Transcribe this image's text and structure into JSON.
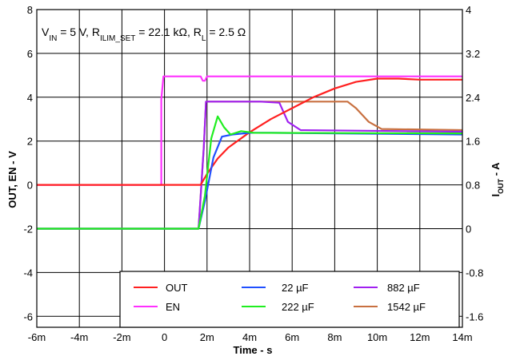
{
  "chart_data": {
    "type": "line",
    "annotation": {
      "vin_label": "V",
      "vin_sub": "IN",
      "vin_val": " = 5 V, ",
      "ilim_label": "R",
      "ilim_sub": "ILIM_SET",
      "ilim_val": " = 22.1 kΩ, ",
      "rl_label": "R",
      "rl_sub": "L",
      "rl_val": " = 2.5 Ω"
    },
    "xlabel": "Time - s",
    "ylabel_left": "OUT, EN - V",
    "ylabel_right_main": "I",
    "ylabel_right_sub": "OUT",
    "ylabel_right_unit": " - A",
    "x_ticks": [
      {
        "v": -6,
        "label": "-6m"
      },
      {
        "v": -4,
        "label": "-4m"
      },
      {
        "v": -2,
        "label": "-2m"
      },
      {
        "v": 0,
        "label": "0"
      },
      {
        "v": 2,
        "label": "2m"
      },
      {
        "v": 4,
        "label": "4m"
      },
      {
        "v": 6,
        "label": "6m"
      },
      {
        "v": 8,
        "label": "8m"
      },
      {
        "v": 10,
        "label": "10m"
      },
      {
        "v": 12,
        "label": "12m"
      },
      {
        "v": 14,
        "label": "14m"
      }
    ],
    "y_left_ticks": [
      {
        "v": 8,
        "label": "8"
      },
      {
        "v": 6,
        "label": "6"
      },
      {
        "v": 4,
        "label": "4"
      },
      {
        "v": 2,
        "label": "2"
      },
      {
        "v": 0,
        "label": "0"
      },
      {
        "v": -2,
        "label": "-2"
      },
      {
        "v": -4,
        "label": "-4"
      },
      {
        "v": -6,
        "label": "-6"
      }
    ],
    "y_right_ticks": [
      {
        "v": 4,
        "label": "4"
      },
      {
        "v": 3.2,
        "label": "3.2"
      },
      {
        "v": 2.4,
        "label": "2.4"
      },
      {
        "v": 1.6,
        "label": "1.6"
      },
      {
        "v": 0.8,
        "label": "0.8"
      },
      {
        "v": 0,
        "label": "0"
      },
      {
        "v": -0.8,
        "label": "-0.8"
      },
      {
        "v": -1.6,
        "label": "-1.6"
      }
    ],
    "xlim": [
      -6,
      14
    ],
    "ylim_left": [
      -6.5,
      8
    ],
    "ylim_right": [
      -1.8,
      4
    ],
    "grid": true,
    "legend_position": "bottom-right",
    "series": [
      {
        "name": "OUT",
        "axis": "left",
        "color": "#ff2020",
        "x": [
          -6,
          0,
          1.7,
          2.0,
          2.5,
          3,
          4,
          5,
          6,
          7,
          8,
          9,
          10,
          11,
          12,
          14
        ],
        "y": [
          0,
          0,
          0,
          0.5,
          1.2,
          1.7,
          2.4,
          3.0,
          3.5,
          4.0,
          4.4,
          4.7,
          4.85,
          4.85,
          4.8,
          4.8
        ]
      },
      {
        "name": "EN",
        "axis": "left",
        "color": "#ff30ff",
        "x": [
          -6,
          -0.15,
          -0.15,
          -0.05,
          0,
          1.7,
          1.8,
          1.9,
          2.0,
          14
        ],
        "y": [
          0,
          0,
          3.9,
          4.95,
          4.95,
          4.95,
          4.75,
          4.75,
          4.95,
          4.95
        ]
      },
      {
        "name": "22 µF",
        "axis": "right",
        "color": "#2050ff",
        "x": [
          -6,
          1.6,
          1.9,
          2.3,
          2.7,
          3.2,
          4,
          5,
          14
        ],
        "y": [
          0.0,
          0.0,
          0.5,
          1.3,
          1.68,
          1.72,
          1.75,
          1.75,
          1.72
        ]
      },
      {
        "name": "222 µF",
        "axis": "right",
        "color": "#20ee20",
        "x": [
          -6,
          1.6,
          1.9,
          2.2,
          2.5,
          2.8,
          3.1,
          3.6,
          4.2,
          14
        ],
        "y": [
          0.0,
          0.0,
          0.6,
          1.65,
          2.05,
          1.85,
          1.72,
          1.78,
          1.75,
          1.74
        ]
      },
      {
        "name": "882 µF",
        "axis": "right",
        "color": "#a020f0",
        "x": [
          -6,
          1.6,
          1.85,
          1.95,
          4.5,
          5.4,
          5.8,
          6.4,
          14
        ],
        "y": [
          0.0,
          0.0,
          1.5,
          2.32,
          2.32,
          2.3,
          1.95,
          1.8,
          1.77
        ]
      },
      {
        "name": "1542 µF",
        "axis": "right",
        "color": "#c87040",
        "x": [
          -6,
          1.6,
          1.85,
          1.95,
          8.6,
          9.0,
          9.6,
          10.2,
          14
        ],
        "y": [
          0.0,
          0.0,
          1.5,
          2.32,
          2.32,
          2.2,
          1.95,
          1.82,
          1.8
        ]
      }
    ]
  }
}
